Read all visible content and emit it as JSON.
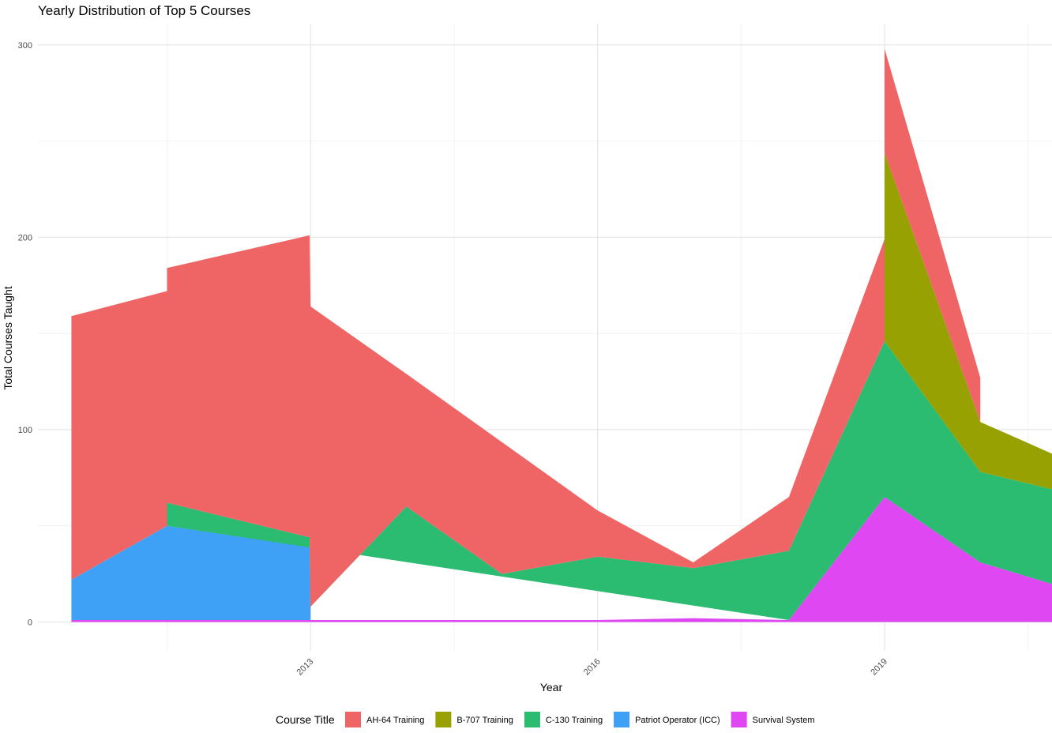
{
  "chart_data": {
    "type": "area",
    "stacked": true,
    "title": "Yearly Distribution of Top 5 Courses",
    "xlabel": "Year",
    "ylabel": "Total Courses Taught",
    "xlim": [
      2010.15,
      2020.75
    ],
    "ylim": [
      -15,
      311
    ],
    "x_ticks": [
      2013,
      2016,
      2019
    ],
    "y_ticks": [
      0,
      100,
      200,
      300
    ],
    "grid": true,
    "legend": {
      "title": "Course Title",
      "position": "bottom"
    },
    "layers": [
      {
        "name": "Survival System",
        "color": "#DE47F2",
        "points": [
          [
            2010.5,
            0
          ],
          [
            2010.5,
            1
          ],
          [
            2011.5,
            1
          ],
          [
            2012.99,
            1
          ],
          [
            2013,
            1
          ],
          [
            2014,
            1
          ],
          [
            2015,
            1
          ],
          [
            2016,
            1
          ],
          [
            2017,
            2
          ],
          [
            2018,
            1
          ],
          [
            2019,
            65
          ],
          [
            2020,
            31
          ],
          [
            2021,
            16
          ],
          [
            2021,
            0
          ]
        ]
      },
      {
        "name": "Patriot Operator (ICC)",
        "color": "#3FA1F6",
        "points": [
          [
            2010.5,
            1
          ],
          [
            2010.5,
            22
          ],
          [
            2011.5,
            50
          ],
          [
            2012.99,
            39
          ],
          [
            2013,
            1
          ],
          [
            2014,
            1
          ]
        ]
      },
      {
        "name": "C-130 Training",
        "color": "#2BBB71",
        "points": [
          [
            2011.5,
            50
          ],
          [
            2011.5,
            62
          ],
          [
            2012.99,
            44
          ],
          [
            2012.99,
            39
          ],
          [
            2013,
            1
          ],
          [
            2013,
            8
          ],
          [
            2014,
            60
          ],
          [
            2015,
            25
          ],
          [
            2016,
            34
          ],
          [
            2017,
            28
          ],
          [
            2018,
            37
          ],
          [
            2019,
            146
          ],
          [
            2020,
            78
          ],
          [
            2021,
            66
          ],
          [
            2021,
            16
          ],
          [
            2020,
            31
          ],
          [
            2019,
            65
          ],
          [
            2018,
            1
          ]
        ]
      },
      {
        "name": "B-707 Training",
        "color": "#97A202",
        "points": [
          [
            2019,
            146
          ],
          [
            2019,
            244
          ],
          [
            2020,
            104
          ],
          [
            2021,
            82
          ],
          [
            2021,
            66
          ],
          [
            2020,
            78
          ]
        ]
      },
      {
        "name": "AH-64 Training",
        "color": "#EF6566",
        "points": [
          [
            2010.5,
            22
          ],
          [
            2010.5,
            159
          ],
          [
            2011.5,
            172
          ],
          [
            2011.5,
            184
          ],
          [
            2012.99,
            201
          ],
          [
            2013,
            164
          ],
          [
            2014,
            129
          ],
          [
            2016,
            58
          ],
          [
            2017,
            31
          ],
          [
            2018,
            65
          ],
          [
            2019,
            199
          ],
          [
            2019,
            298
          ],
          [
            2020,
            127
          ],
          [
            2020,
            104
          ],
          [
            2019,
            244
          ],
          [
            2019,
            146
          ],
          [
            2018,
            37
          ],
          [
            2017,
            28
          ],
          [
            2016,
            34
          ],
          [
            2015,
            25
          ],
          [
            2014,
            60
          ],
          [
            2013,
            8
          ],
          [
            2013,
            1
          ],
          [
            2012.99,
            44
          ],
          [
            2011.5,
            62
          ],
          [
            2011.5,
            50
          ]
        ]
      }
    ],
    "legend_order": [
      "AH-64 Training",
      "B-707 Training",
      "C-130 Training",
      "Patriot Operator (ICC)",
      "Survival System"
    ]
  }
}
